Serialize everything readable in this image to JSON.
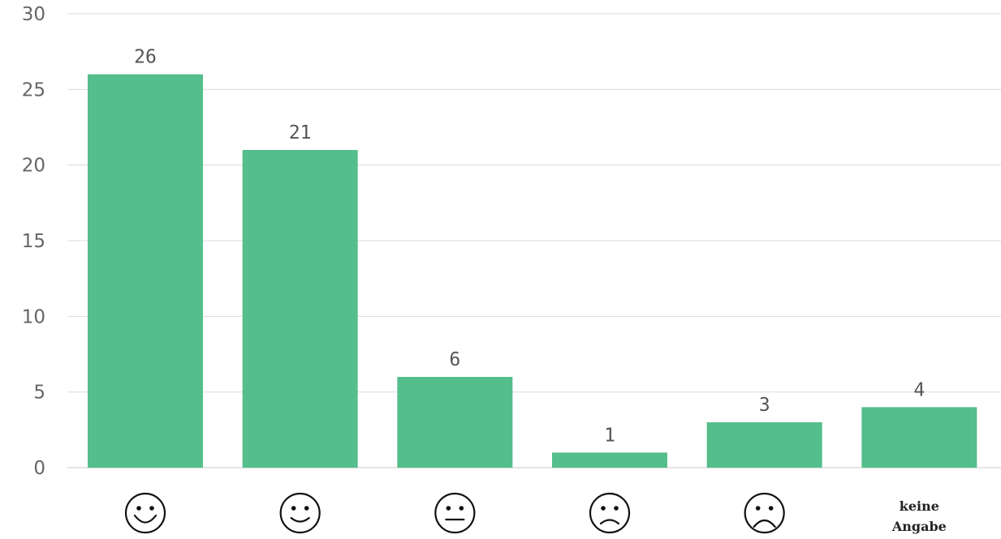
{
  "chart_data": {
    "type": "bar",
    "categories": [
      "very-happy-face",
      "happy-face",
      "neutral-face",
      "sad-face",
      "very-sad-face",
      "keine Angabe"
    ],
    "category_labels": [
      {
        "icon": "very-happy-face-icon",
        "text": ""
      },
      {
        "icon": "happy-face-icon",
        "text": ""
      },
      {
        "icon": "neutral-face-icon",
        "text": ""
      },
      {
        "icon": "sad-face-icon",
        "text": ""
      },
      {
        "icon": "very-sad-face-icon",
        "text": ""
      },
      {
        "icon": "",
        "text_lines": [
          "keine",
          "Angabe"
        ]
      }
    ],
    "values": [
      26,
      21,
      6,
      1,
      3,
      4
    ],
    "data_labels": [
      "26",
      "21",
      "6",
      "1",
      "3",
      "4"
    ],
    "title": "",
    "xlabel": "",
    "ylabel": "",
    "ylim": [
      0,
      30
    ],
    "yticks": [
      0,
      5,
      10,
      15,
      20,
      25,
      30
    ],
    "ytick_labels": [
      "0",
      "5",
      "10",
      "15",
      "20",
      "25",
      "30"
    ],
    "grid": true,
    "legend": "none",
    "bar_color": "#54be8c",
    "grid_color": "#dcdcdc"
  }
}
